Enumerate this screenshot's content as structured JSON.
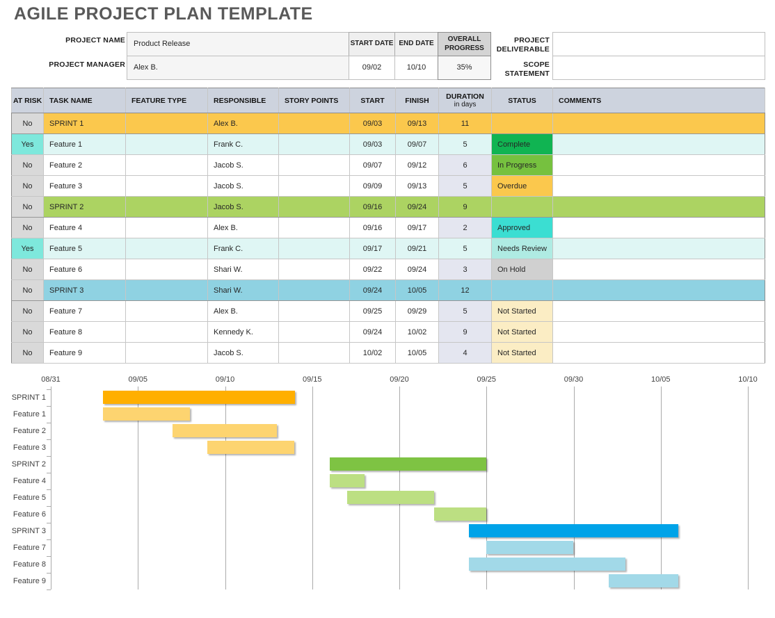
{
  "title": "AGILE PROJECT PLAN TEMPLATE",
  "info": {
    "project_name": {
      "label": "PROJECT NAME",
      "value": "Product Release"
    },
    "project_manager": {
      "label": "PROJECT MANAGER",
      "value": "Alex B."
    },
    "start_date": {
      "label": "START DATE",
      "value": "09/02"
    },
    "end_date": {
      "label": "END DATE",
      "value": "10/10"
    },
    "overall_progress": {
      "label": "OVERALL PROGRESS",
      "value": "35%"
    },
    "deliverable": {
      "label": "PROJECT DELIVERABLE",
      "value": ""
    },
    "scope": {
      "label": "SCOPE STATEMENT",
      "value": ""
    }
  },
  "table": {
    "columns": [
      "AT RISK",
      "TASK NAME",
      "FEATURE TYPE",
      "RESPONSIBLE",
      "STORY POINTS",
      "START",
      "FINISH",
      "DURATION",
      "STATUS",
      "COMMENTS"
    ],
    "duration_sub": "in days",
    "rows": [
      {
        "at_risk": "No",
        "task": "SPRINT 1",
        "feature_type": "",
        "responsible": "Alex B.",
        "story_points": "",
        "start": "09/03",
        "finish": "09/13",
        "duration": "11",
        "status": "",
        "comments": "",
        "group": "sprint1",
        "kind": "sprint"
      },
      {
        "at_risk": "Yes",
        "task": "Feature 1",
        "feature_type": "",
        "responsible": "Frank C.",
        "story_points": "",
        "start": "09/03",
        "finish": "09/07",
        "duration": "5",
        "status": "Complete",
        "comments": "",
        "group": "sprint1",
        "kind": "feature"
      },
      {
        "at_risk": "No",
        "task": "Feature 2",
        "feature_type": "",
        "responsible": "Jacob S.",
        "story_points": "",
        "start": "09/07",
        "finish": "09/12",
        "duration": "6",
        "status": "In Progress",
        "comments": "",
        "group": "sprint1",
        "kind": "feature"
      },
      {
        "at_risk": "No",
        "task": "Feature 3",
        "feature_type": "",
        "responsible": "Jacob S.",
        "story_points": "",
        "start": "09/09",
        "finish": "09/13",
        "duration": "5",
        "status": "Overdue",
        "comments": "",
        "group": "sprint1",
        "kind": "feature"
      },
      {
        "at_risk": "No",
        "task": "SPRINT 2",
        "feature_type": "",
        "responsible": "Jacob S.",
        "story_points": "",
        "start": "09/16",
        "finish": "09/24",
        "duration": "9",
        "status": "",
        "comments": "",
        "group": "sprint2",
        "kind": "sprint"
      },
      {
        "at_risk": "No",
        "task": "Feature 4",
        "feature_type": "",
        "responsible": "Alex B.",
        "story_points": "",
        "start": "09/16",
        "finish": "09/17",
        "duration": "2",
        "status": "Approved",
        "comments": "",
        "group": "sprint2",
        "kind": "feature"
      },
      {
        "at_risk": "Yes",
        "task": "Feature 5",
        "feature_type": "",
        "responsible": "Frank C.",
        "story_points": "",
        "start": "09/17",
        "finish": "09/21",
        "duration": "5",
        "status": "Needs Review",
        "comments": "",
        "group": "sprint2",
        "kind": "feature"
      },
      {
        "at_risk": "No",
        "task": "Feature 6",
        "feature_type": "",
        "responsible": "Shari W.",
        "story_points": "",
        "start": "09/22",
        "finish": "09/24",
        "duration": "3",
        "status": "On Hold",
        "comments": "",
        "group": "sprint2",
        "kind": "feature"
      },
      {
        "at_risk": "No",
        "task": "SPRINT 3",
        "feature_type": "",
        "responsible": "Shari W.",
        "story_points": "",
        "start": "09/24",
        "finish": "10/05",
        "duration": "12",
        "status": "",
        "comments": "",
        "group": "sprint3",
        "kind": "sprint"
      },
      {
        "at_risk": "No",
        "task": "Feature 7",
        "feature_type": "",
        "responsible": "Alex B.",
        "story_points": "",
        "start": "09/25",
        "finish": "09/29",
        "duration": "5",
        "status": "Not Started",
        "comments": "",
        "group": "sprint3",
        "kind": "feature"
      },
      {
        "at_risk": "No",
        "task": "Feature 8",
        "feature_type": "",
        "responsible": "Kennedy K.",
        "story_points": "",
        "start": "09/24",
        "finish": "10/02",
        "duration": "9",
        "status": "Not Started",
        "comments": "",
        "group": "sprint3",
        "kind": "feature"
      },
      {
        "at_risk": "No",
        "task": "Feature 9",
        "feature_type": "",
        "responsible": "Jacob S.",
        "story_points": "",
        "start": "10/02",
        "finish": "10/05",
        "duration": "4",
        "status": "Not Started",
        "comments": "",
        "group": "sprint3",
        "kind": "feature"
      }
    ]
  },
  "status_colors": {
    "Complete": "#10b452",
    "In Progress": "#76c13f",
    "Overdue": "#fbc84d",
    "Approved": "#3bded2",
    "Needs Review": "#afebe3",
    "On Hold": "#d0d0d0",
    "Not Started": "#fbedc4"
  },
  "row_colors": {
    "sprint1": "#fbc84d",
    "sprint2": "#acd362",
    "sprint3": "#8fd2e2",
    "risk_row": "#dff6f4",
    "risk_yes": "#7ee8dc",
    "risk_no": "#d9d9d9",
    "duration_col": "#e4e6f0",
    "header": "#cdd3de"
  },
  "chart_data": {
    "type": "bar",
    "subtype": "gantt",
    "axis_start": "08/31",
    "axis_end": "10/10",
    "days_total": 40,
    "x_ticks": [
      "08/31",
      "09/05",
      "09/10",
      "09/15",
      "09/20",
      "09/25",
      "09/30",
      "10/05",
      "10/10"
    ],
    "grid": "vertical-on",
    "legend": "none",
    "bar_colors": {
      "sprint1": "#ffaf00",
      "feature1": "#fdd470",
      "sprint2": "#7ec343",
      "feature2": "#bcdf82",
      "sprint3": "#00a3e8",
      "feature3": "#a2d9e8"
    },
    "tasks": [
      {
        "label": "SPRINT 1",
        "start": "09/03",
        "start_day": 3,
        "duration_days": 11,
        "style": "sprint1"
      },
      {
        "label": "Feature 1",
        "start": "09/03",
        "start_day": 3,
        "duration_days": 5,
        "style": "feature1"
      },
      {
        "label": "Feature 2",
        "start": "09/07",
        "start_day": 7,
        "duration_days": 6,
        "style": "feature1"
      },
      {
        "label": "Feature 3",
        "start": "09/09",
        "start_day": 9,
        "duration_days": 5,
        "style": "feature1"
      },
      {
        "label": "SPRINT 2",
        "start": "09/16",
        "start_day": 16,
        "duration_days": 9,
        "style": "sprint2"
      },
      {
        "label": "Feature 4",
        "start": "09/16",
        "start_day": 16,
        "duration_days": 2,
        "style": "feature2"
      },
      {
        "label": "Feature 5",
        "start": "09/17",
        "start_day": 17,
        "duration_days": 5,
        "style": "feature2"
      },
      {
        "label": "Feature 6",
        "start": "09/22",
        "start_day": 22,
        "duration_days": 3,
        "style": "feature2"
      },
      {
        "label": "SPRINT 3",
        "start": "09/24",
        "start_day": 24,
        "duration_days": 12,
        "style": "sprint3"
      },
      {
        "label": "Feature 7",
        "start": "09/25",
        "start_day": 25,
        "duration_days": 5,
        "style": "feature3"
      },
      {
        "label": "Feature 8",
        "start": "09/24",
        "start_day": 24,
        "duration_days": 9,
        "style": "feature3"
      },
      {
        "label": "Feature 9",
        "start": "10/02",
        "start_day": 32,
        "duration_days": 4,
        "style": "feature3"
      }
    ]
  }
}
